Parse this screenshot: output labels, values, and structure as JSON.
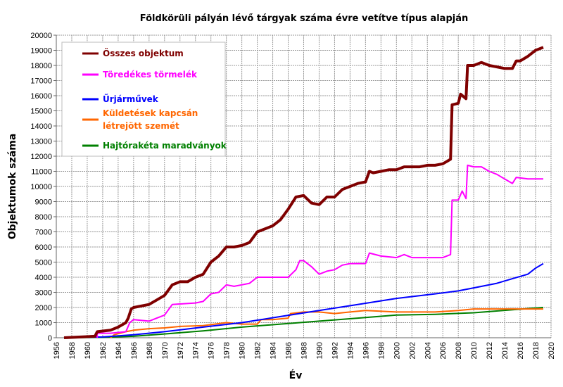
{
  "chart_data": {
    "type": "line",
    "title": "Földkörüli pályán lévő tárgyak száma évre vetítve típus alapján",
    "xlabel": "Év",
    "ylabel": "Objektumok száma",
    "xlim": [
      1956,
      2020
    ],
    "ylim": [
      0,
      20000
    ],
    "xticks": [
      1956,
      1958,
      1960,
      1962,
      1964,
      1966,
      1968,
      1970,
      1972,
      1974,
      1976,
      1978,
      1980,
      1982,
      1984,
      1986,
      1988,
      1990,
      1992,
      1994,
      1996,
      1998,
      2000,
      2002,
      2004,
      2006,
      2008,
      2010,
      2012,
      2014,
      2016,
      2018,
      2020
    ],
    "yticks": [
      0,
      1000,
      2000,
      3000,
      4000,
      5000,
      6000,
      7000,
      8000,
      9000,
      10000,
      11000,
      12000,
      13000,
      14000,
      15000,
      16000,
      17000,
      18000,
      19000,
      20000
    ],
    "grid": true,
    "legend_position": "top-left",
    "series": [
      {
        "name": "Összes objektum",
        "color": "#7f0000",
        "width": 4,
        "points": [
          [
            1957,
            0
          ],
          [
            1961,
            100
          ],
          [
            1961.3,
            400
          ],
          [
            1963,
            500
          ],
          [
            1964,
            700
          ],
          [
            1965,
            1000
          ],
          [
            1965.3,
            1300
          ],
          [
            1965.7,
            1900
          ],
          [
            1966,
            2000
          ],
          [
            1967,
            2100
          ],
          [
            1968,
            2200
          ],
          [
            1969,
            2500
          ],
          [
            1970,
            2800
          ],
          [
            1971,
            3500
          ],
          [
            1972,
            3700
          ],
          [
            1973,
            3700
          ],
          [
            1974,
            4000
          ],
          [
            1975,
            4200
          ],
          [
            1976,
            5000
          ],
          [
            1977,
            5400
          ],
          [
            1978,
            6000
          ],
          [
            1979,
            6000
          ],
          [
            1980,
            6100
          ],
          [
            1981,
            6300
          ],
          [
            1982,
            7000
          ],
          [
            1983,
            7200
          ],
          [
            1984,
            7400
          ],
          [
            1985,
            7800
          ],
          [
            1986,
            8500
          ],
          [
            1987,
            9300
          ],
          [
            1988,
            9400
          ],
          [
            1989,
            8900
          ],
          [
            1990,
            8800
          ],
          [
            1991,
            9300
          ],
          [
            1992,
            9300
          ],
          [
            1993,
            9800
          ],
          [
            1994,
            10000
          ],
          [
            1995,
            10200
          ],
          [
            1996,
            10300
          ],
          [
            1996.5,
            11000
          ],
          [
            1997,
            10900
          ],
          [
            1998,
            11000
          ],
          [
            1999,
            11100
          ],
          [
            2000,
            11100
          ],
          [
            2001,
            11300
          ],
          [
            2002,
            11300
          ],
          [
            2003,
            11300
          ],
          [
            2004,
            11400
          ],
          [
            2005,
            11400
          ],
          [
            2006,
            11500
          ],
          [
            2007,
            11800
          ],
          [
            2007.2,
            15400
          ],
          [
            2008,
            15500
          ],
          [
            2008.3,
            16100
          ],
          [
            2009,
            15800
          ],
          [
            2009.2,
            18000
          ],
          [
            2010,
            18000
          ],
          [
            2011,
            18200
          ],
          [
            2012,
            18000
          ],
          [
            2013,
            17900
          ],
          [
            2014,
            17800
          ],
          [
            2015,
            17800
          ],
          [
            2015.5,
            18300
          ],
          [
            2016,
            18300
          ],
          [
            2017,
            18600
          ],
          [
            2018,
            19000
          ],
          [
            2019,
            19200
          ]
        ]
      },
      {
        "name": "Töredékes törmelék",
        "color": "#ff00ff",
        "width": 2,
        "points": [
          [
            1961.3,
            0
          ],
          [
            1961.3,
            300
          ],
          [
            1963,
            300
          ],
          [
            1965,
            400
          ],
          [
            1965.5,
            1000
          ],
          [
            1966,
            1200
          ],
          [
            1968,
            1100
          ],
          [
            1969,
            1300
          ],
          [
            1970,
            1500
          ],
          [
            1971,
            2200
          ],
          [
            1974,
            2300
          ],
          [
            1975,
            2400
          ],
          [
            1976,
            2900
          ],
          [
            1977,
            3000
          ],
          [
            1978,
            3500
          ],
          [
            1979,
            3400
          ],
          [
            1980,
            3500
          ],
          [
            1981,
            3600
          ],
          [
            1982,
            4000
          ],
          [
            1984,
            4000
          ],
          [
            1986,
            4000
          ],
          [
            1987,
            4500
          ],
          [
            1987.5,
            5100
          ],
          [
            1988,
            5100
          ],
          [
            1989,
            4700
          ],
          [
            1990,
            4200
          ],
          [
            1991,
            4400
          ],
          [
            1992,
            4500
          ],
          [
            1993,
            4800
          ],
          [
            1994,
            4900
          ],
          [
            1996,
            4900
          ],
          [
            1996.5,
            5600
          ],
          [
            1998,
            5400
          ],
          [
            2000,
            5300
          ],
          [
            2001,
            5500
          ],
          [
            2002,
            5300
          ],
          [
            2003,
            5300
          ],
          [
            2005,
            5300
          ],
          [
            2006,
            5300
          ],
          [
            2007,
            5500
          ],
          [
            2007.2,
            9100
          ],
          [
            2008,
            9100
          ],
          [
            2008.5,
            9700
          ],
          [
            2009,
            9200
          ],
          [
            2009.2,
            11400
          ],
          [
            2010,
            11300
          ],
          [
            2011,
            11300
          ],
          [
            2012,
            11000
          ],
          [
            2013,
            10800
          ],
          [
            2014,
            10500
          ],
          [
            2015,
            10200
          ],
          [
            2015.5,
            10600
          ],
          [
            2017,
            10500
          ],
          [
            2019,
            10500
          ]
        ]
      },
      {
        "name": "Űrjárművek",
        "color": "#0000ff",
        "width": 2,
        "points": [
          [
            1957,
            0
          ],
          [
            1962,
            50
          ],
          [
            1966,
            200
          ],
          [
            1970,
            400
          ],
          [
            1975,
            700
          ],
          [
            1980,
            1000
          ],
          [
            1985,
            1400
          ],
          [
            1990,
            1800
          ],
          [
            1995,
            2200
          ],
          [
            2000,
            2600
          ],
          [
            2005,
            2900
          ],
          [
            2008,
            3100
          ],
          [
            2010,
            3300
          ],
          [
            2013,
            3600
          ],
          [
            2015,
            3900
          ],
          [
            2017,
            4200
          ],
          [
            2018,
            4600
          ],
          [
            2019,
            4900
          ]
        ]
      },
      {
        "name": "Küldetések kapcsán létrejött szemét",
        "color": "#ff6600",
        "width": 2,
        "points": [
          [
            1963,
            0
          ],
          [
            1963.5,
            200
          ],
          [
            1965,
            400
          ],
          [
            1966,
            500
          ],
          [
            1968,
            600
          ],
          [
            1970,
            650
          ],
          [
            1972,
            750
          ],
          [
            1975,
            800
          ],
          [
            1978,
            1000
          ],
          [
            1980,
            900
          ],
          [
            1982,
            900
          ],
          [
            1982.5,
            1200
          ],
          [
            1984,
            1200
          ],
          [
            1986,
            1300
          ],
          [
            1986.3,
            1600
          ],
          [
            1988,
            1700
          ],
          [
            1990,
            1700
          ],
          [
            1992,
            1600
          ],
          [
            1994,
            1700
          ],
          [
            1996,
            1800
          ],
          [
            2000,
            1700
          ],
          [
            2002,
            1700
          ],
          [
            2005,
            1700
          ],
          [
            2008,
            1800
          ],
          [
            2010,
            1900
          ],
          [
            2014,
            1900
          ],
          [
            2019,
            1900
          ]
        ]
      },
      {
        "name": "Hajtórakéta maradványok",
        "color": "#008000",
        "width": 2,
        "points": [
          [
            1957,
            0
          ],
          [
            1962,
            30
          ],
          [
            1966,
            100
          ],
          [
            1970,
            250
          ],
          [
            1975,
            450
          ],
          [
            1980,
            700
          ],
          [
            1985,
            900
          ],
          [
            1990,
            1100
          ],
          [
            1995,
            1300
          ],
          [
            2000,
            1500
          ],
          [
            2005,
            1550
          ],
          [
            2010,
            1650
          ],
          [
            2015,
            1850
          ],
          [
            2019,
            2000
          ]
        ]
      }
    ],
    "legend_lines": [
      [
        "Összes objektum"
      ],
      [
        "Töredékes törmelék"
      ],
      [
        "Űrjárművek"
      ],
      [
        "Küldetések kapcsán",
        "létrejött szemét"
      ],
      [
        "Hajtórakéta maradványok"
      ]
    ]
  }
}
